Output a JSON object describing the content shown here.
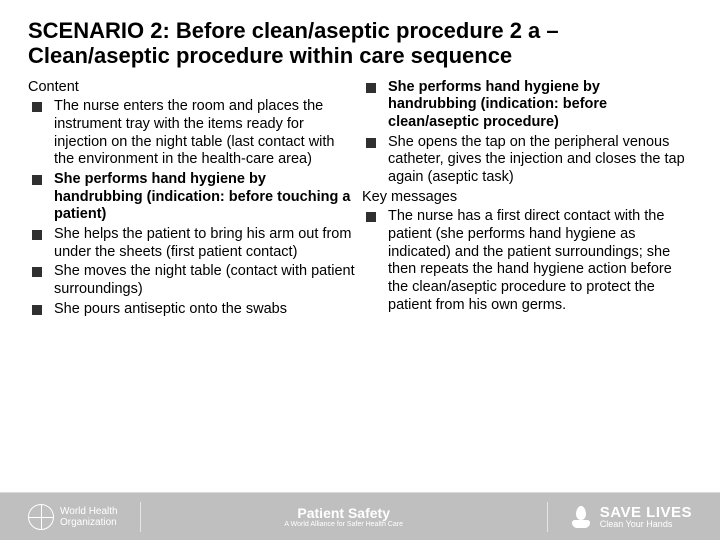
{
  "title": "SCENARIO 2: Before clean/aseptic procedure 2 a – Clean/aseptic procedure within care sequence",
  "left": {
    "heading": "Content",
    "items": [
      {
        "text": "The nurse enters the room and places the instrument tray with the items ready for injection on the night table (last contact with the environment in the health-care area)",
        "bold": false
      },
      {
        "text": "She performs hand hygiene by handrubbing (indication: before touching a patient)",
        "bold": true
      },
      {
        "text": "She helps the patient to bring his arm out from under the sheets (first patient contact)",
        "bold": false
      },
      {
        "text": "She moves the night table (contact with patient surroundings)",
        "bold": false
      },
      {
        "text": "She pours antiseptic onto the swabs",
        "bold": false
      }
    ]
  },
  "right": {
    "items": [
      {
        "text": "She performs hand hygiene by handrubbing (indication: before clean/aseptic procedure)",
        "bold": true
      },
      {
        "text": "She opens the tap on the peripheral venous catheter, gives the injection and closes the tap again (aseptic task)",
        "bold": false
      }
    ],
    "heading2": "Key messages",
    "items2": [
      {
        "text": "The nurse has a first direct contact with the patient (she performs hand hygiene as indicated) and the patient surroundings; she then repeats the hand hygiene action before the clean/aseptic procedure to protect the patient from his own germs.",
        "bold": false
      }
    ]
  },
  "footer": {
    "who1": "World Health",
    "who2": "Organization",
    "ps": "Patient Safety",
    "ps_sub": "A World Alliance for Safer Health Care",
    "save": "SAVE LIVES",
    "save_sub": "Clean Your Hands"
  },
  "colors": {
    "bullet": "#303030",
    "footer_bg": "#bfbfbf"
  }
}
